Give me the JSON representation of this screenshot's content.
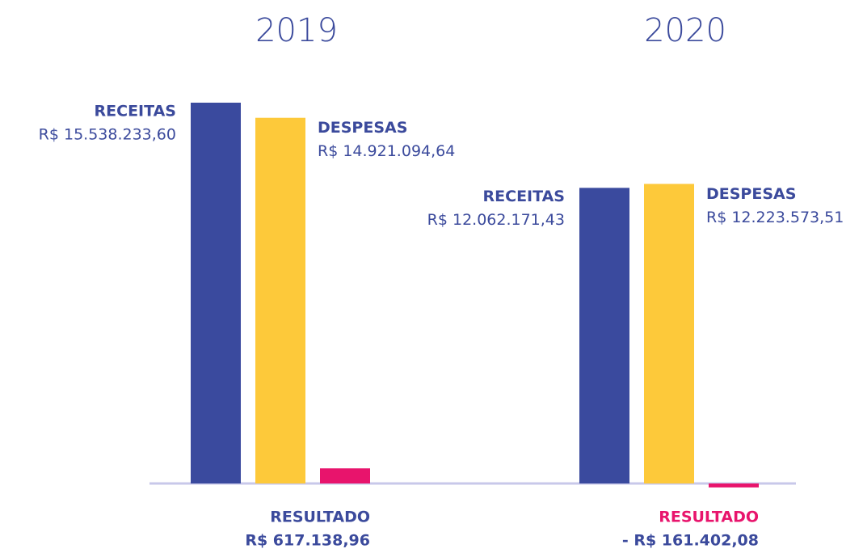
{
  "chart_data": {
    "type": "bar",
    "categories": [
      "2019",
      "2020"
    ],
    "series": [
      {
        "name": "RECEITAS",
        "color": "#3a4a9e",
        "values": [
          15538233.6,
          12062171.43
        ],
        "value_labels": [
          "R$ 15.538.233,60",
          "R$ 12.062.171,43"
        ]
      },
      {
        "name": "DESPESAS",
        "color": "#fdc93a",
        "values": [
          14921094.64,
          12223573.51
        ],
        "value_labels": [
          "R$ 14.921.094,64",
          "R$ 12.223.573,51"
        ]
      },
      {
        "name": "RESULTADO",
        "color": "#e8146c",
        "values": [
          617138.96,
          -161402.08
        ],
        "value_labels": [
          "R$ 617.138,96",
          "- R$ 161.402,08"
        ]
      }
    ]
  }
}
